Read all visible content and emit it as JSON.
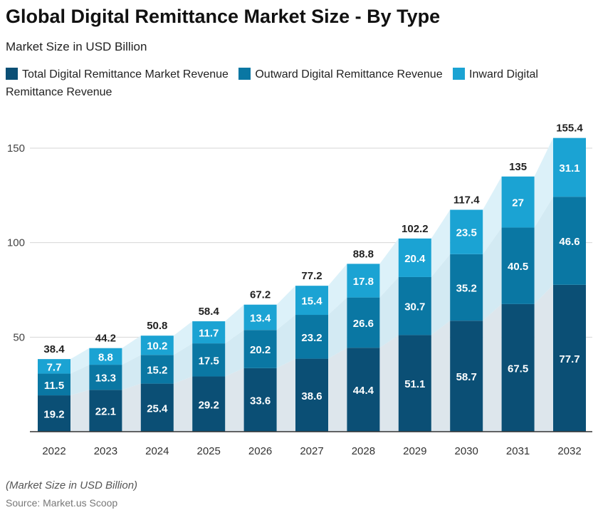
{
  "title": "Global Digital Remittance Market Size - By Type",
  "subtitle": "Market Size in USD Billion",
  "note": "(Market Size in USD Billion)",
  "source": "Source: Market.us Scoop",
  "chart_data": {
    "type": "bar",
    "stacked": true,
    "categories": [
      "2022",
      "2023",
      "2024",
      "2025",
      "2026",
      "2027",
      "2028",
      "2029",
      "2030",
      "2031",
      "2032"
    ],
    "series": [
      {
        "name": "Total Digital Remittance Market Revenue",
        "color": "#0b4f75",
        "values": [
          19.2,
          22.1,
          25.4,
          29.2,
          33.6,
          38.6,
          44.4,
          51.1,
          58.7,
          67.5,
          77.7
        ]
      },
      {
        "name": "Outward Digital Remittance Revenue",
        "color": "#0a77a3",
        "values": [
          11.5,
          13.3,
          15.2,
          17.5,
          20.2,
          23.2,
          26.6,
          30.7,
          35.2,
          40.5,
          46.6
        ]
      },
      {
        "name": "Inward Digital Remittance Revenue",
        "color": "#1ba3d3",
        "values": [
          7.7,
          8.8,
          10.2,
          11.7,
          13.4,
          15.4,
          17.8,
          20.4,
          23.5,
          27,
          31.1
        ]
      }
    ],
    "totals": [
      38.4,
      44.2,
      50.8,
      58.4,
      67.2,
      77.2,
      88.8,
      102.2,
      117.4,
      135,
      155.4
    ],
    "yticks": [
      50,
      100,
      150
    ],
    "ylim": [
      0,
      155.4
    ],
    "grid": true,
    "legend": "top-left"
  }
}
